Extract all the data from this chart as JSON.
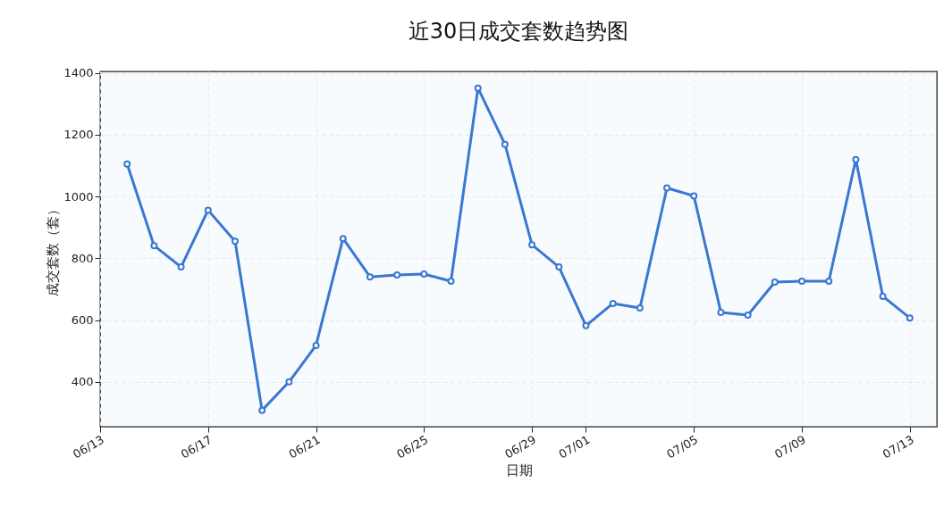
{
  "chart_data": {
    "type": "line",
    "title": "近30日成交套数趋势图",
    "xlabel": "日期",
    "ylabel": "成交套数（套）",
    "x": [
      "--06-14",
      "--06-15",
      "--06-16",
      "--06-17",
      "--06-18",
      "--06-19",
      "--06-20",
      "--06-21",
      "--06-22",
      "--06-23",
      "--06-24",
      "--06-25",
      "--06-26",
      "--06-27",
      "--06-28",
      "--06-29",
      "--06-30",
      "--07-01",
      "--07-02",
      "--07-03",
      "--07-04",
      "--07-05",
      "--07-06",
      "--07-07",
      "--07-08",
      "--07-09",
      "--07-10",
      "--07-11",
      "--07-12",
      "--07-13"
    ],
    "series": [
      {
        "color": "#3a78d0",
        "values": [
          1105,
          841,
          772,
          956,
          855,
          308,
          400,
          518,
          864,
          740,
          746,
          749,
          726,
          1351,
          1169,
          844,
          772,
          582,
          654,
          639,
          1028,
          1002,
          625,
          616,
          723,
          726,
          726,
          1120,
          677,
          607
        ]
      }
    ],
    "xlim": [
      "--06-13",
      "--07-14"
    ],
    "xticks": [
      {
        "value": "--06-13",
        "label": "06/13"
      },
      {
        "value": "--06-17",
        "label": "06/17"
      },
      {
        "value": "--06-21",
        "label": "06/21"
      },
      {
        "value": "--06-25",
        "label": "06/25"
      },
      {
        "value": "--06-29",
        "label": "06/29"
      },
      {
        "value": "--07-01",
        "label": "07/01"
      },
      {
        "value": "--07-05",
        "label": "07/05"
      },
      {
        "value": "--07-09",
        "label": "07/09"
      },
      {
        "value": "--07-13",
        "label": "07/13"
      }
    ],
    "ylim": [
      255,
      1405
    ],
    "yticks": [
      400,
      600,
      800,
      1000,
      1200,
      1400
    ],
    "grid": true,
    "marker": "circle",
    "line_style": "solid"
  }
}
